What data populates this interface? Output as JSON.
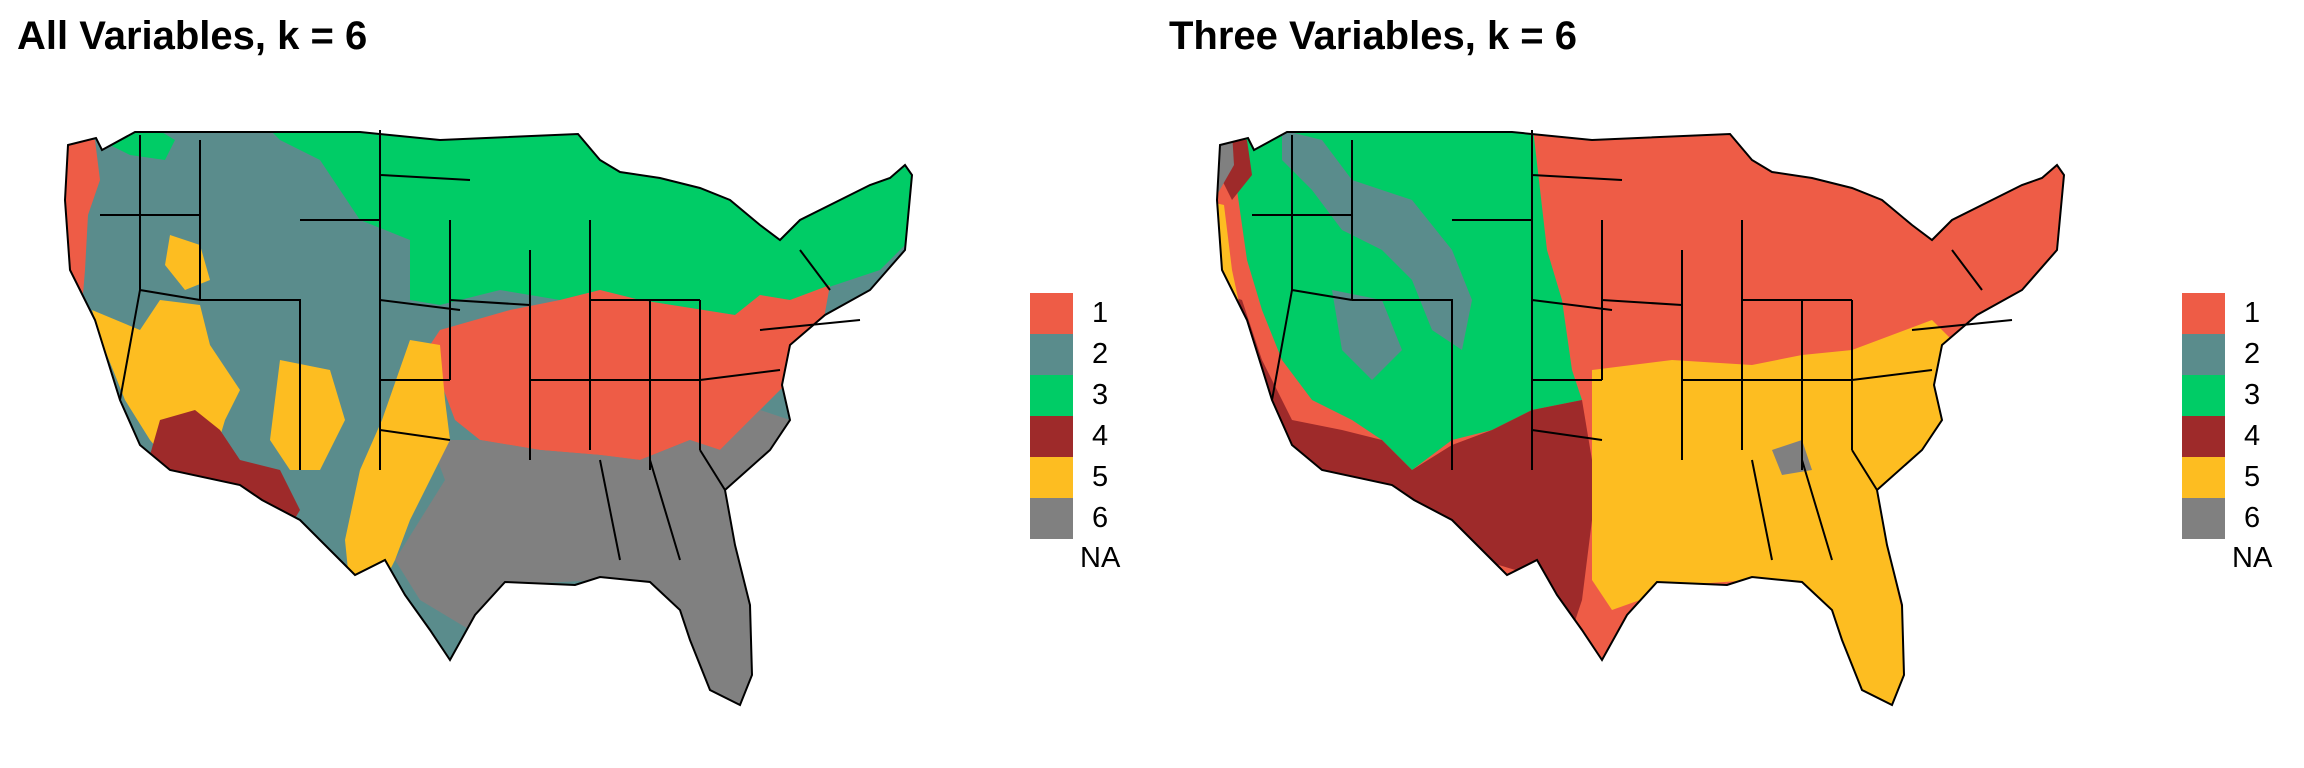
{
  "colors": {
    "class_1": "#EE5C46",
    "class_2": "#5A8C8C",
    "class_3": "#00CC66",
    "class_4": "#9E2A2A",
    "class_5": "#FDBD21",
    "class_6": "#808080",
    "borders": "#000000",
    "background": "#FFFFFF"
  },
  "legend": {
    "items": [
      {
        "label": "1",
        "color": "#EE5C46"
      },
      {
        "label": "2",
        "color": "#5A8C8C"
      },
      {
        "label": "3",
        "color": "#00CC66"
      },
      {
        "label": "4",
        "color": "#9E2A2A"
      },
      {
        "label": "5",
        "color": "#FDBD21"
      },
      {
        "label": "6",
        "color": "#808080"
      }
    ],
    "na_label": "NA"
  },
  "panels": [
    {
      "title": "All Variables, k = 6"
    },
    {
      "title": "Three Variables, k = 6"
    }
  ]
}
